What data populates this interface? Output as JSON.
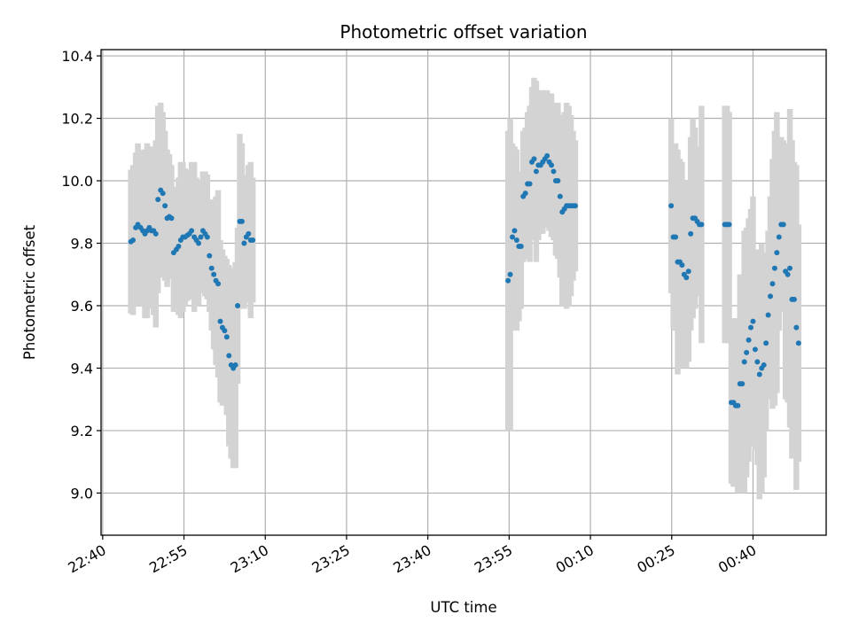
{
  "chart_data": {
    "type": "scatter",
    "title": "Photometric offset variation",
    "xlabel": "UTC time",
    "ylabel": "Photometric offset",
    "x_unit": "minutes relative to 22:40 UTC",
    "xlim": [
      -0.3,
      133.5
    ],
    "ylim": [
      8.865,
      10.42
    ],
    "grid": true,
    "x_ticks": [
      {
        "value": 0,
        "label": "22:40"
      },
      {
        "value": 15,
        "label": "22:55"
      },
      {
        "value": 30,
        "label": "23:10"
      },
      {
        "value": 45,
        "label": "23:25"
      },
      {
        "value": 60,
        "label": "23:40"
      },
      {
        "value": 75,
        "label": "23:55"
      },
      {
        "value": 90,
        "label": "00:10"
      },
      {
        "value": 105,
        "label": "00:25"
      },
      {
        "value": 120,
        "label": "00:40"
      }
    ],
    "y_ticks": [
      {
        "value": 9.0,
        "label": "9.0"
      },
      {
        "value": 9.2,
        "label": "9.2"
      },
      {
        "value": 9.4,
        "label": "9.4"
      },
      {
        "value": 9.6,
        "label": "9.6"
      },
      {
        "value": 9.8,
        "label": "9.8"
      },
      {
        "value": 10.0,
        "label": "10.0"
      },
      {
        "value": 10.2,
        "label": "10.2"
      },
      {
        "value": 10.4,
        "label": "10.4"
      }
    ],
    "colors": {
      "points": "#1f77b4",
      "error_bars": "#d3d3d3",
      "grid": "#b0b0b0"
    },
    "series": [
      {
        "x": [
          5.2,
          5.6,
          6.1,
          6.5,
          7.0,
          7.4,
          7.8,
          8.2,
          8.6,
          9.0,
          9.4,
          9.8,
          10.2,
          10.7,
          11.1,
          11.5,
          11.9,
          12.3,
          12.7,
          13.1,
          13.6,
          14.0,
          14.4,
          14.8,
          15.2,
          15.6,
          16.0,
          16.4,
          16.9,
          17.3,
          17.7,
          18.1,
          18.5,
          18.9,
          19.3,
          19.7,
          20.1,
          20.5,
          20.9,
          21.3,
          21.7,
          22.1,
          22.5,
          22.9,
          23.3,
          23.7,
          24.1,
          24.5,
          24.9,
          25.3,
          25.7,
          26.1,
          26.5,
          26.9,
          27.3,
          27.7,
          74.8,
          75.2,
          75.6,
          76.0,
          76.4,
          76.8,
          77.2,
          77.6,
          78.0,
          78.4,
          78.8,
          79.2,
          79.6,
          80.0,
          80.4,
          80.8,
          81.2,
          81.6,
          82.0,
          82.4,
          82.8,
          83.2,
          83.6,
          84.0,
          84.4,
          84.8,
          85.2,
          85.6,
          86.0,
          86.4,
          86.8,
          87.2,
          104.9,
          105.3,
          105.7,
          106.1,
          106.5,
          106.9,
          107.3,
          107.7,
          108.1,
          108.5,
          108.9,
          109.3,
          109.7,
          110.1,
          110.5,
          114.8,
          115.2,
          115.6,
          116.0,
          116.4,
          116.8,
          117.2,
          117.6,
          118.0,
          118.4,
          118.8,
          119.2,
          119.6,
          120.0,
          120.4,
          120.8,
          121.2,
          121.6,
          122.0,
          122.4,
          122.8,
          123.2,
          123.6,
          124.0,
          124.4,
          124.8,
          125.2,
          125.6,
          126.0,
          126.4,
          126.8,
          127.2,
          127.6,
          128.0,
          128.4
        ],
        "y": [
          9.805,
          9.81,
          9.85,
          9.86,
          9.85,
          9.84,
          9.83,
          9.84,
          9.85,
          9.84,
          9.84,
          9.83,
          9.94,
          9.97,
          9.96,
          9.92,
          9.88,
          9.885,
          9.88,
          9.77,
          9.78,
          9.79,
          9.81,
          9.82,
          9.82,
          9.825,
          9.83,
          9.84,
          9.82,
          9.81,
          9.8,
          9.82,
          9.84,
          9.83,
          9.82,
          9.76,
          9.72,
          9.7,
          9.68,
          9.67,
          9.55,
          9.53,
          9.52,
          9.5,
          9.44,
          9.41,
          9.4,
          9.41,
          9.6,
          9.87,
          9.87,
          9.8,
          9.82,
          9.83,
          9.81,
          9.81,
          9.68,
          9.7,
          9.82,
          9.84,
          9.81,
          9.79,
          9.79,
          9.95,
          9.96,
          9.99,
          9.99,
          10.06,
          10.07,
          10.03,
          10.05,
          10.05,
          10.06,
          10.07,
          10.08,
          10.06,
          10.05,
          10.03,
          10.0,
          10.0,
          9.95,
          9.9,
          9.91,
          9.92,
          9.92,
          9.92,
          9.92,
          9.92,
          9.92,
          9.82,
          9.82,
          9.74,
          9.74,
          9.73,
          9.7,
          9.69,
          9.71,
          9.83,
          9.88,
          9.88,
          9.87,
          9.86,
          9.86,
          9.86,
          9.86,
          9.86,
          9.29,
          9.29,
          9.28,
          9.28,
          9.35,
          9.35,
          9.42,
          9.45,
          9.49,
          9.53,
          9.55,
          9.46,
          9.42,
          9.38,
          9.4,
          9.41,
          9.48,
          9.57,
          9.63,
          9.67,
          9.72,
          9.77,
          9.82,
          9.86,
          9.86,
          9.71,
          9.7,
          9.72,
          9.62,
          9.62,
          9.53,
          9.48
        ],
        "error": [
          0.23,
          0.24,
          0.24,
          0.26,
          0.25,
          0.24,
          0.27,
          0.28,
          0.26,
          0.25,
          0.27,
          0.3,
          0.3,
          0.28,
          0.26,
          0.24,
          0.22,
          0.2,
          0.17,
          0.19,
          0.2,
          0.22,
          0.25,
          0.24,
          0.22,
          0.21,
          0.2,
          0.22,
          0.24,
          0.2,
          0.2,
          0.18,
          0.19,
          0.2,
          0.2,
          0.18,
          0.2,
          0.24,
          0.27,
          0.3,
          0.26,
          0.25,
          0.24,
          0.25,
          0.29,
          0.3,
          0.32,
          0.33,
          0.25,
          0.28,
          0.25,
          0.21,
          0.2,
          0.22,
          0.25,
          0.2,
          0.48,
          0.5,
          0.3,
          0.27,
          0.29,
          0.24,
          0.2,
          0.21,
          0.21,
          0.23,
          0.25,
          0.24,
          0.26,
          0.29,
          0.24,
          0.22,
          0.23,
          0.22,
          0.21,
          0.22,
          0.23,
          0.22,
          0.24,
          0.25,
          0.26,
          0.3,
          0.31,
          0.33,
          0.32,
          0.29,
          0.24,
          0.21,
          0.28,
          0.29,
          0.3,
          0.36,
          0.33,
          0.33,
          0.3,
          0.29,
          0.29,
          0.31,
          0.32,
          0.29,
          0.24,
          0.23,
          0.38,
          0.38,
          0.38,
          0.36,
          0.26,
          0.27,
          0.25,
          0.28,
          0.35,
          0.35,
          0.42,
          0.4,
          0.39,
          0.38,
          0.4,
          0.32,
          0.33,
          0.4,
          0.4,
          0.36,
          0.28,
          0.27,
          0.32,
          0.4,
          0.44,
          0.45,
          0.3,
          0.28,
          0.27,
          0.41,
          0.41,
          0.51,
          0.51,
          0.44,
          0.52,
          0.38
        ]
      }
    ]
  }
}
